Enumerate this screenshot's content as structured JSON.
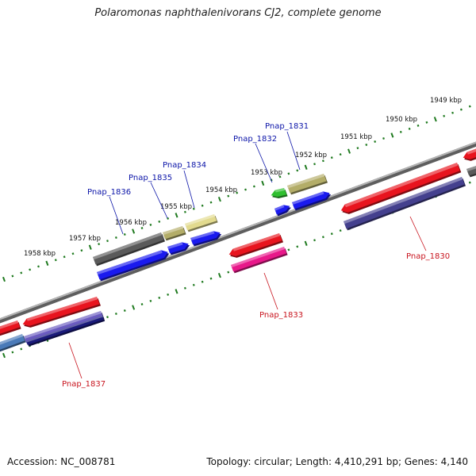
{
  "title": "Polaromonas naphthalenivorans CJ2, complete genome",
  "footer": {
    "accession": "Accession: NC_008781",
    "topology": "Topology: circular; Length: 4,410,291 bp; Genes: 4,140"
  },
  "colors": {
    "backbone": "#8a8a8a",
    "tick": "#1f7a1f",
    "label_top_strand": "#0b14a8",
    "label_bottom_strand": "#c8141e",
    "feature_red": "#e8141e",
    "feature_blue": "#1a1aee",
    "feature_dark_gray": "#5a5a5a",
    "feature_olive": "#b3ad68",
    "feature_khaki": "#e2da8e",
    "feature_green": "#2fbf2f",
    "feature_pink": "#e8188a",
    "feature_purple": "#44408e",
    "feature_violet": "#6a5bc0",
    "feature_navy": "#1a1a7a",
    "feature_steel": "#4a7ab8"
  },
  "kbp_labels": [
    "1949 kbp",
    "1950 kbp",
    "1951 kbp",
    "1952 kbp",
    "1953 kbp",
    "1954 kbp",
    "1955 kbp",
    "1956 kbp",
    "1957 kbp",
    "1958 kbp"
  ],
  "genes_top": [
    "Pnap_1831",
    "Pnap_1832",
    "Pnap_1834",
    "Pnap_1835",
    "Pnap_1836"
  ],
  "genes_bottom": [
    "Pnap_1830",
    "Pnap_1833",
    "Pnap_1837"
  ]
}
